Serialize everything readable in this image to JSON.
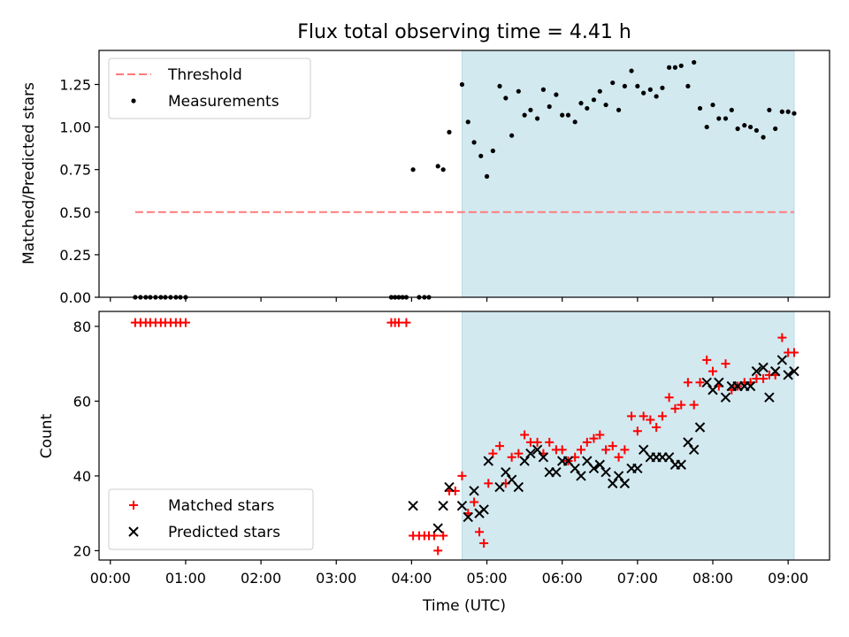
{
  "chart_data": [
    {
      "type": "scatter",
      "title": "Flux total observing time = 4.41 h",
      "ylabel": "Matched/Predicted stars",
      "xlim": [
        -0.15,
        9.55
      ],
      "ylim": [
        0,
        1.45
      ],
      "yticks": [
        0.0,
        0.25,
        0.5,
        0.75,
        1.0,
        1.25
      ],
      "ytick_labels": [
        "0.00",
        "0.25",
        "0.50",
        "0.75",
        "1.00",
        "1.25"
      ],
      "grid": false,
      "legend_position": "upper-left",
      "shaded_span": [
        4.67,
        9.08
      ],
      "shade_color": "#d2e9f0",
      "threshold": {
        "name": "Threshold",
        "value": 0.5,
        "x_range": [
          0.33,
          9.08
        ],
        "color": "#ff7b7b"
      },
      "series": [
        {
          "name": "Measurements",
          "color": "#000000",
          "x": [
            0.33,
            0.4,
            0.47,
            0.53,
            0.6,
            0.67,
            0.73,
            0.8,
            0.87,
            0.93,
            1.0,
            3.73,
            3.78,
            3.83,
            3.88,
            3.93,
            4.02,
            4.1,
            4.17,
            4.23,
            4.35,
            4.42,
            4.5,
            4.67,
            4.75,
            4.83,
            4.92,
            5.0,
            5.08,
            5.17,
            5.25,
            5.33,
            5.42,
            5.5,
            5.58,
            5.67,
            5.75,
            5.83,
            5.92,
            6.0,
            6.08,
            6.17,
            6.25,
            6.33,
            6.42,
            6.5,
            6.58,
            6.67,
            6.75,
            6.83,
            6.92,
            7.0,
            7.08,
            7.17,
            7.25,
            7.33,
            7.42,
            7.5,
            7.58,
            7.67,
            7.75,
            7.83,
            7.92,
            8.0,
            8.08,
            8.17,
            8.25,
            8.33,
            8.42,
            8.5,
            8.58,
            8.67,
            8.75,
            8.83,
            8.92,
            9.0,
            9.08
          ],
          "y": [
            0,
            0,
            0,
            0,
            0,
            0,
            0,
            0,
            0,
            0,
            0,
            0,
            0,
            0,
            0,
            0,
            0.75,
            0,
            0,
            0,
            0.77,
            0.75,
            0.97,
            1.25,
            1.03,
            0.91,
            0.83,
            0.71,
            0.86,
            1.24,
            1.17,
            0.95,
            1.21,
            1.07,
            1.1,
            1.05,
            1.22,
            1.12,
            1.19,
            1.07,
            1.07,
            1.03,
            1.14,
            1.11,
            1.16,
            1.21,
            1.13,
            1.26,
            1.1,
            1.24,
            1.33,
            1.24,
            1.2,
            1.22,
            1.18,
            1.23,
            1.35,
            1.35,
            1.36,
            1.24,
            1.38,
            1.11,
            1.0,
            1.13,
            1.05,
            1.05,
            1.1,
            0.99,
            1.01,
            1.0,
            0.98,
            0.94,
            1.1,
            0.99,
            1.09,
            1.09,
            1.08
          ]
        }
      ]
    },
    {
      "type": "scatter",
      "xlabel": "Time (UTC)",
      "ylabel": "Count",
      "xlim": [
        -0.15,
        9.55
      ],
      "ylim": [
        17.5,
        84
      ],
      "xticks": [
        0,
        1,
        2,
        3,
        4,
        5,
        6,
        7,
        8,
        9
      ],
      "xtick_labels": [
        "00:00",
        "01:00",
        "02:00",
        "03:00",
        "04:00",
        "05:00",
        "06:00",
        "07:00",
        "08:00",
        "09:00"
      ],
      "yticks": [
        20,
        40,
        60,
        80
      ],
      "ytick_labels": [
        "20",
        "40",
        "60",
        "80"
      ],
      "grid": false,
      "legend_position": "lower-left",
      "shaded_span": [
        4.67,
        9.08
      ],
      "shade_color": "#d2e9f0",
      "series": [
        {
          "name": "Matched stars",
          "marker": "plus",
          "color": "#ff0000",
          "x": [
            0.33,
            0.4,
            0.47,
            0.53,
            0.6,
            0.67,
            0.73,
            0.8,
            0.87,
            0.93,
            1.0,
            3.73,
            3.78,
            3.83,
            3.93,
            4.02,
            4.1,
            4.17,
            4.23,
            4.3,
            4.35,
            4.42,
            4.5,
            4.58,
            4.67,
            4.75,
            4.83,
            4.9,
            4.96,
            5.02,
            5.08,
            5.17,
            5.25,
            5.33,
            5.42,
            5.5,
            5.58,
            5.67,
            5.75,
            5.83,
            5.92,
            6.0,
            6.08,
            6.17,
            6.25,
            6.33,
            6.42,
            6.5,
            6.58,
            6.67,
            6.75,
            6.83,
            6.92,
            7.0,
            7.08,
            7.17,
            7.25,
            7.33,
            7.42,
            7.5,
            7.58,
            7.67,
            7.75,
            7.83,
            7.92,
            8.0,
            8.08,
            8.17,
            8.25,
            8.33,
            8.42,
            8.5,
            8.58,
            8.67,
            8.75,
            8.83,
            8.92,
            9.0,
            9.08
          ],
          "y": [
            81,
            81,
            81,
            81,
            81,
            81,
            81,
            81,
            81,
            81,
            81,
            81,
            81,
            81,
            81,
            24,
            24,
            24,
            24,
            24,
            20,
            24,
            36,
            36,
            40,
            30,
            33,
            25,
            22,
            38,
            46,
            48,
            38,
            45,
            46,
            51,
            49,
            49,
            46,
            49,
            47,
            47,
            44,
            45,
            47,
            49,
            50,
            51,
            47,
            48,
            45,
            47,
            56,
            52,
            56,
            55,
            53,
            56,
            61,
            58,
            59,
            65,
            59,
            65,
            71,
            68,
            64,
            70,
            63,
            64,
            65,
            65,
            66,
            66,
            67,
            67,
            77,
            73,
            73
          ]
        },
        {
          "name": "Predicted stars",
          "marker": "x",
          "color": "#000000",
          "x": [
            4.02,
            4.35,
            4.42,
            4.5,
            4.67,
            4.75,
            4.83,
            4.9,
            4.96,
            5.02,
            5.17,
            5.25,
            5.33,
            5.42,
            5.5,
            5.58,
            5.67,
            5.75,
            5.83,
            5.92,
            6.0,
            6.08,
            6.17,
            6.25,
            6.33,
            6.42,
            6.5,
            6.58,
            6.67,
            6.75,
            6.83,
            6.92,
            7.0,
            7.08,
            7.17,
            7.25,
            7.33,
            7.42,
            7.5,
            7.58,
            7.67,
            7.75,
            7.83,
            7.92,
            8.0,
            8.08,
            8.17,
            8.25,
            8.33,
            8.42,
            8.5,
            8.58,
            8.67,
            8.75,
            8.83,
            8.92,
            9.0,
            9.08
          ],
          "y": [
            32,
            26,
            32,
            37,
            32,
            29,
            36,
            30,
            31,
            44,
            37,
            41,
            39,
            37,
            44,
            46,
            47,
            45,
            41,
            41,
            44,
            44,
            42,
            40,
            44,
            42,
            43,
            41,
            38,
            40,
            38,
            42,
            42,
            47,
            45,
            45,
            45,
            45,
            43,
            43,
            49,
            47,
            53,
            65,
            63,
            65,
            61,
            64,
            64,
            64,
            64,
            68,
            69,
            61,
            68,
            71,
            67,
            68
          ]
        }
      ]
    }
  ]
}
